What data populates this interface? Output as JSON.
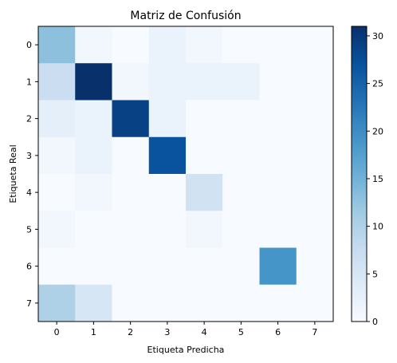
{
  "chart_data": {
    "type": "heatmap",
    "title": "Matriz de Confusión",
    "xlabel": "Etiqueta Predicha",
    "ylabel": "Etiqueta Real",
    "x_categories": [
      "0",
      "1",
      "2",
      "3",
      "4",
      "5",
      "6",
      "7"
    ],
    "y_categories": [
      "0",
      "1",
      "2",
      "3",
      "4",
      "5",
      "6",
      "7"
    ],
    "values": [
      [
        13,
        1,
        0,
        2,
        1,
        0,
        0,
        0
      ],
      [
        7,
        31,
        1,
        2,
        2,
        2,
        0,
        0
      ],
      [
        3,
        2,
        29,
        2,
        0,
        0,
        0,
        0
      ],
      [
        1,
        2,
        0,
        27,
        0,
        0,
        0,
        0
      ],
      [
        0,
        1,
        0,
        0,
        6,
        0,
        0,
        0
      ],
      [
        1,
        0,
        0,
        0,
        1,
        0,
        0,
        0
      ],
      [
        0,
        0,
        0,
        0,
        0,
        0,
        19,
        0
      ],
      [
        10,
        5,
        0,
        0,
        0,
        0,
        0,
        0
      ]
    ],
    "colormap": "Blues",
    "colorbar": {
      "range": [
        0,
        31
      ],
      "ticks": [
        "0",
        "5",
        "10",
        "15",
        "20",
        "25",
        "30"
      ]
    }
  }
}
